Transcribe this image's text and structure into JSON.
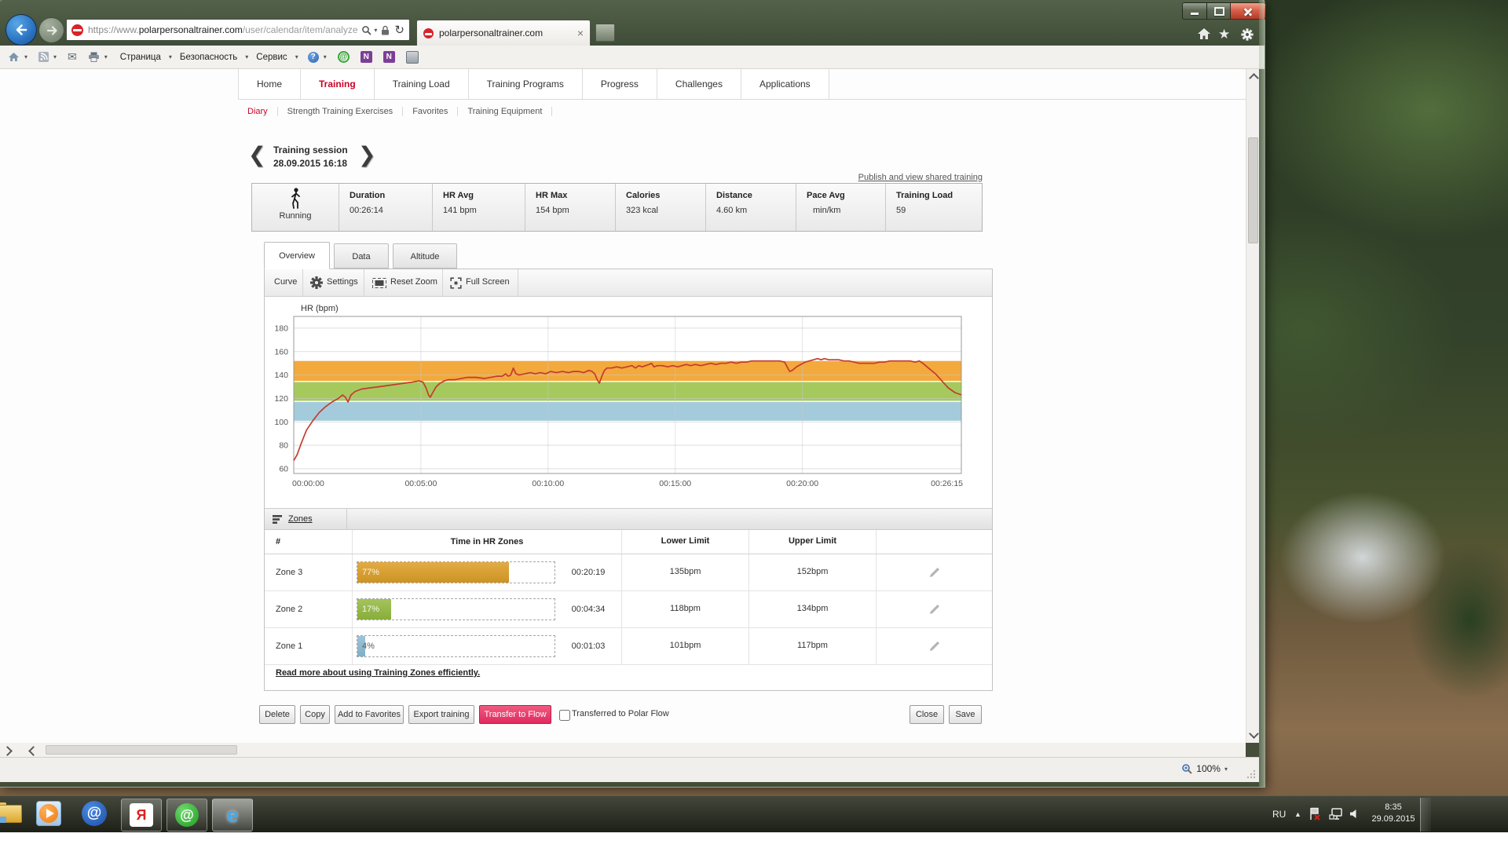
{
  "glyphs": {
    "chevron_left": "❮",
    "chevron_right": "❯",
    "tab_close": "×",
    "dropdown": "▾",
    "back_arrow": "",
    "star": "★",
    "tray_up": "▲",
    "help": "?",
    "at": "@",
    "letter_n": "N",
    "letter_ya": "Я",
    "letter_e": "e",
    "mail": "✉",
    "refresh": "↻"
  },
  "browser": {
    "url_prefix": "https://www.",
    "url_domain": "polarpersonaltrainer.com",
    "url_path": "/user/calendar/item/analyze",
    "tab_title": "polarpersonaltrainer.com",
    "menu_page": "Страница",
    "menu_security": "Безопасность",
    "menu_tools": "Сервис",
    "zoom_level": "100%"
  },
  "site_nav": {
    "items": [
      "Home",
      "Training",
      "Training Load",
      "Training Programs",
      "Progress",
      "Challenges",
      "Applications"
    ],
    "active": "Training"
  },
  "sub_nav": {
    "items": [
      "Diary",
      "Strength Training Exercises",
      "Favorites",
      "Training Equipment"
    ],
    "active": "Diary"
  },
  "session": {
    "title": "Training session",
    "datetime": "28.09.2015 16:18",
    "publish_link": "Publish and view shared training",
    "sport": "Running",
    "stats": [
      {
        "label": "Duration",
        "value": "00:26:14",
        "unit": ""
      },
      {
        "label": "HR Avg",
        "value": "141",
        "unit": "bpm"
      },
      {
        "label": "HR Max",
        "value": "154",
        "unit": "bpm"
      },
      {
        "label": "Calories",
        "value": "323",
        "unit": "kcal"
      },
      {
        "label": "Distance",
        "value": "4.60",
        "unit": "km"
      },
      {
        "label": "Pace Avg",
        "value": "",
        "unit": "min/km"
      },
      {
        "label": "Training Load",
        "value": "59",
        "unit": ""
      }
    ]
  },
  "view_tabs": {
    "items": [
      "Overview",
      "Data",
      "Altitude"
    ],
    "active": "Overview"
  },
  "chart_toolbar": {
    "curve": "Curve",
    "settings": "Settings",
    "reset_zoom": "Reset Zoom",
    "full_screen": "Full Screen"
  },
  "chart_data": {
    "type": "line",
    "title": "HR (bpm)",
    "x_tick_labels": [
      "00:00:00",
      "00:05:00",
      "00:10:00",
      "00:15:00",
      "00:20:00",
      "00:26:15"
    ],
    "x_tick_seconds": [
      0,
      300,
      600,
      900,
      1200,
      1575
    ],
    "x_grid_seconds": [
      300,
      600,
      900,
      1200
    ],
    "y_ticks": [
      60,
      80,
      100,
      120,
      140,
      160,
      180
    ],
    "ylim": [
      56,
      190
    ],
    "xlim_seconds": [
      0,
      1575
    ],
    "grid": true,
    "legend": "none",
    "bands": [
      {
        "name": "Zone 3",
        "from_bpm": 135,
        "to_bpm": 152,
        "color": "#f3a93c"
      },
      {
        "name": "Zone 2",
        "from_bpm": 118,
        "to_bpm": 134,
        "color": "#a6c95e"
      },
      {
        "name": "Zone 1",
        "from_bpm": 101,
        "to_bpm": 117,
        "color": "#a4cbdc"
      }
    ],
    "series": [
      {
        "name": "HR",
        "color": "#c53b2e",
        "points": [
          [
            0,
            67
          ],
          [
            8,
            72
          ],
          [
            18,
            82
          ],
          [
            30,
            93
          ],
          [
            45,
            101
          ],
          [
            60,
            108
          ],
          [
            75,
            113
          ],
          [
            90,
            117
          ],
          [
            105,
            120
          ],
          [
            115,
            123
          ],
          [
            122,
            121
          ],
          [
            128,
            117
          ],
          [
            135,
            123
          ],
          [
            145,
            126
          ],
          [
            160,
            128
          ],
          [
            180,
            129
          ],
          [
            200,
            130
          ],
          [
            220,
            131
          ],
          [
            240,
            132
          ],
          [
            260,
            133
          ],
          [
            280,
            134
          ],
          [
            295,
            135
          ],
          [
            305,
            134
          ],
          [
            312,
            129
          ],
          [
            318,
            123
          ],
          [
            322,
            121
          ],
          [
            328,
            125
          ],
          [
            336,
            130
          ],
          [
            345,
            133
          ],
          [
            355,
            135
          ],
          [
            365,
            136
          ],
          [
            380,
            136
          ],
          [
            395,
            137
          ],
          [
            410,
            138
          ],
          [
            430,
            138
          ],
          [
            450,
            137
          ],
          [
            465,
            138
          ],
          [
            480,
            139
          ],
          [
            492,
            139
          ],
          [
            500,
            141
          ],
          [
            506,
            139
          ],
          [
            512,
            140
          ],
          [
            518,
            146
          ],
          [
            524,
            141
          ],
          [
            532,
            140
          ],
          [
            545,
            141
          ],
          [
            558,
            142
          ],
          [
            570,
            141
          ],
          [
            582,
            142
          ],
          [
            594,
            141
          ],
          [
            606,
            143
          ],
          [
            620,
            142
          ],
          [
            634,
            143
          ],
          [
            648,
            142
          ],
          [
            660,
            143
          ],
          [
            672,
            143
          ],
          [
            684,
            142
          ],
          [
            696,
            144
          ],
          [
            704,
            143
          ],
          [
            710,
            141
          ],
          [
            716,
            136
          ],
          [
            721,
            133
          ],
          [
            727,
            139
          ],
          [
            733,
            144
          ],
          [
            739,
            146
          ],
          [
            750,
            146
          ],
          [
            762,
            147
          ],
          [
            774,
            146
          ],
          [
            786,
            147
          ],
          [
            798,
            148
          ],
          [
            806,
            146
          ],
          [
            814,
            148
          ],
          [
            822,
            147
          ],
          [
            830,
            148
          ],
          [
            838,
            149
          ],
          [
            844,
            150
          ],
          [
            850,
            147
          ],
          [
            858,
            148
          ],
          [
            870,
            148
          ],
          [
            882,
            147
          ],
          [
            894,
            148
          ],
          [
            906,
            147
          ],
          [
            916,
            148
          ],
          [
            926,
            149
          ],
          [
            936,
            148
          ],
          [
            948,
            149
          ],
          [
            960,
            148
          ],
          [
            972,
            149
          ],
          [
            984,
            150
          ],
          [
            996,
            149
          ],
          [
            1008,
            150
          ],
          [
            1020,
            150
          ],
          [
            1032,
            151
          ],
          [
            1044,
            150
          ],
          [
            1056,
            151
          ],
          [
            1068,
            151
          ],
          [
            1080,
            152
          ],
          [
            1092,
            152
          ],
          [
            1104,
            152
          ],
          [
            1118,
            152
          ],
          [
            1132,
            152
          ],
          [
            1146,
            152
          ],
          [
            1158,
            151
          ],
          [
            1164,
            147
          ],
          [
            1170,
            143
          ],
          [
            1176,
            144
          ],
          [
            1186,
            147
          ],
          [
            1196,
            149
          ],
          [
            1206,
            151
          ],
          [
            1216,
            152
          ],
          [
            1226,
            153
          ],
          [
            1236,
            154
          ],
          [
            1244,
            153
          ],
          [
            1252,
            154
          ],
          [
            1262,
            153
          ],
          [
            1274,
            153
          ],
          [
            1286,
            153
          ],
          [
            1298,
            152
          ],
          [
            1310,
            152
          ],
          [
            1322,
            151
          ],
          [
            1334,
            150
          ],
          [
            1346,
            150
          ],
          [
            1358,
            150
          ],
          [
            1370,
            150
          ],
          [
            1382,
            151
          ],
          [
            1394,
            151
          ],
          [
            1406,
            152
          ],
          [
            1418,
            152
          ],
          [
            1430,
            152
          ],
          [
            1442,
            152
          ],
          [
            1454,
            152
          ],
          [
            1466,
            151
          ],
          [
            1476,
            152
          ],
          [
            1484,
            150
          ],
          [
            1494,
            147
          ],
          [
            1504,
            144
          ],
          [
            1514,
            141
          ],
          [
            1524,
            137
          ],
          [
            1534,
            133
          ],
          [
            1544,
            129
          ],
          [
            1552,
            127
          ],
          [
            1560,
            125
          ],
          [
            1568,
            124
          ],
          [
            1575,
            123
          ]
        ]
      }
    ]
  },
  "zones": {
    "header_label": "Zones",
    "columns": {
      "num": "#",
      "time_in_zones": "Time in HR Zones",
      "lower": "Lower Limit",
      "upper": "Upper Limit"
    },
    "rows": [
      {
        "name": "Zone 3",
        "percent": 77,
        "percent_label": "77%",
        "time": "00:20:19",
        "lower": "135bpm",
        "upper": "152bpm",
        "bar_color_top": "#e2ab44",
        "bar_color_bottom": "#cd9323",
        "label_color": "#faf5ea"
      },
      {
        "name": "Zone 2",
        "percent": 17,
        "percent_label": "17%",
        "time": "00:04:34",
        "lower": "118bpm",
        "upper": "134bpm",
        "bar_color_top": "#a3c45c",
        "bar_color_bottom": "#88ad3a",
        "label_color": "#f4f8ec"
      },
      {
        "name": "Zone 1",
        "percent": 4,
        "percent_label": "4%",
        "time": "00:01:03",
        "lower": "101bpm",
        "upper": "117bpm",
        "bar_color_top": "#9ec4d8",
        "bar_color_bottom": "#7fb0c9",
        "label_color": "#5a5a5a"
      }
    ],
    "read_more": "Read more about using Training Zones efficiently."
  },
  "actions": {
    "delete": "Delete",
    "copy": "Copy",
    "add_to_favorites": "Add to Favorites",
    "export_training": "Export training",
    "transfer_to_flow": "Transfer to Flow",
    "transferred_label": "Transferred to Polar Flow",
    "close": "Close",
    "save": "Save"
  },
  "taskbar": {
    "lang": "RU",
    "time": "8:35",
    "date": "29.09.2015"
  }
}
